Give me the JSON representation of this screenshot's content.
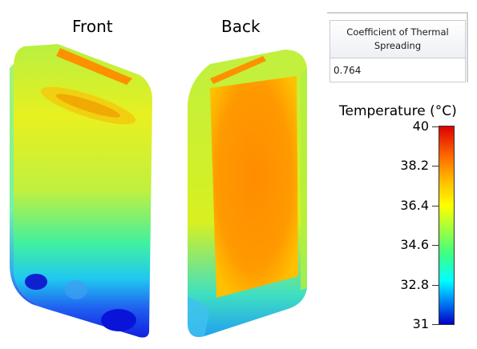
{
  "views": {
    "front": "Front",
    "back": "Back"
  },
  "table": {
    "header_line1": "Coefficient of Thermal",
    "header_line2": "Spreading",
    "value": "0.764"
  },
  "legend": {
    "title": "Temperature (°C)",
    "ticks": [
      "40",
      "38.2",
      "36.4",
      "34.6",
      "32.8",
      "31"
    ],
    "min": 31,
    "max": 40,
    "colors": {
      "hot": "#e00000",
      "warm": "#ff8000",
      "mid": "#ffff00",
      "cool": "#00ffff",
      "cold": "#0000c8"
    }
  }
}
